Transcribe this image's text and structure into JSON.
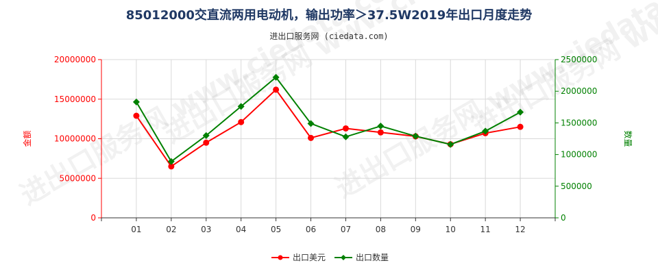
{
  "title": "85012000交直流两用电动机，输出功率＞37.5W2019年出口月度走势",
  "subtitle": "进出口服务网 (ciedata.com)",
  "watermark": "进出口服务网 www.ciedata.com",
  "colors": {
    "series1": "#ff0000",
    "series2": "#008000",
    "grid": "#d9d9d9",
    "axis": "#333333"
  },
  "chart_data": {
    "type": "line",
    "categories": [
      "01",
      "02",
      "03",
      "04",
      "05",
      "06",
      "07",
      "08",
      "09",
      "10",
      "11",
      "12"
    ],
    "series": [
      {
        "name": "出口美元",
        "axis": "left",
        "color": "#ff0000",
        "marker": "circle",
        "values": [
          12900000,
          6500000,
          9500000,
          12100000,
          16200000,
          10100000,
          11300000,
          10800000,
          10300000,
          9300000,
          10700000,
          11500000
        ]
      },
      {
        "name": "出口数量",
        "axis": "right",
        "color": "#008000",
        "marker": "diamond",
        "values": [
          1830000,
          890000,
          1300000,
          1760000,
          2220000,
          1490000,
          1280000,
          1450000,
          1290000,
          1160000,
          1370000,
          1670000
        ]
      }
    ],
    "ylabel_left": "金额",
    "ylabel_right": "数量",
    "ylim_left": [
      0,
      20000000
    ],
    "ylim_right": [
      0,
      2500000
    ],
    "yticks_left": [
      "0",
      "5000000",
      "10000000",
      "15000000",
      "20000000"
    ],
    "yticks_right": [
      "0",
      "500000",
      "1000000",
      "1500000",
      "2000000",
      "2500000"
    ],
    "grid": true,
    "legend_position": "bottom"
  }
}
